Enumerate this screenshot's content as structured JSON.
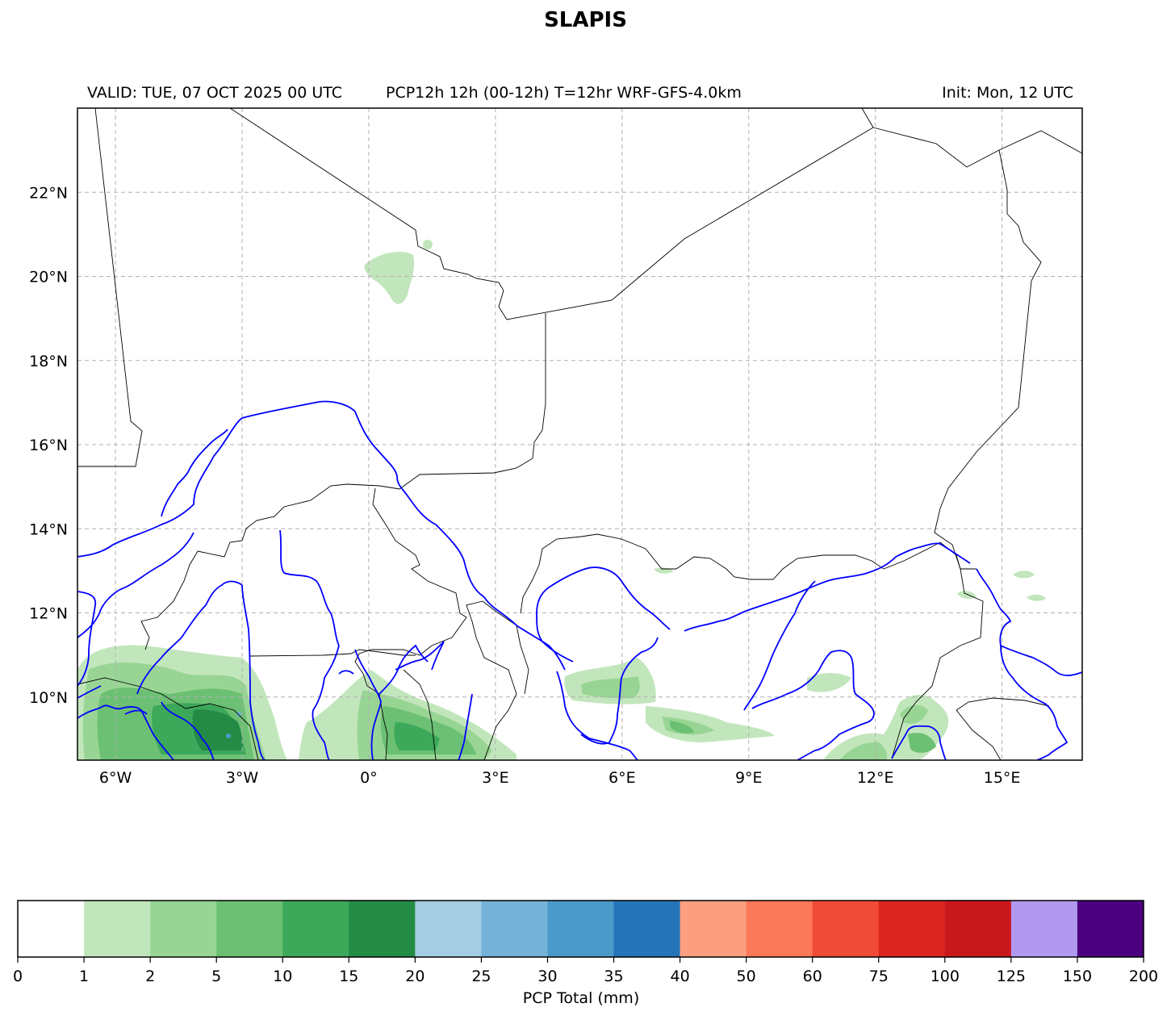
{
  "header": {
    "title": "SLAPIS",
    "valid": "VALID: TUE, 07 OCT 2025 00 UTC",
    "product": "PCP12h 12h (00-12h) T=12hr WRF-GFS-4.0km",
    "init": "Init: Mon, 12 UTC"
  },
  "map": {
    "lon_range": [
      -6.9,
      16.9
    ],
    "lat_range": [
      8.5,
      24.0
    ],
    "lon_ticks": [
      {
        "lon": -6,
        "label": "6°W"
      },
      {
        "lon": -3,
        "label": "3°W"
      },
      {
        "lon": 0,
        "label": "0°"
      },
      {
        "lon": 3,
        "label": "3°E"
      },
      {
        "lon": 6,
        "label": "6°E"
      },
      {
        "lon": 9,
        "label": "9°E"
      },
      {
        "lon": 12,
        "label": "12°E"
      },
      {
        "lon": 15,
        "label": "15°E"
      }
    ],
    "lat_ticks": [
      {
        "lat": 10,
        "label": "10°N"
      },
      {
        "lat": 12,
        "label": "12°N"
      },
      {
        "lat": 14,
        "label": "14°N"
      },
      {
        "lat": 16,
        "label": "16°N"
      },
      {
        "lat": 18,
        "label": "18°N"
      },
      {
        "lat": 20,
        "label": "20°N"
      },
      {
        "lat": 22,
        "label": "22°N"
      }
    ],
    "gridlines": true,
    "border_color": "#000000",
    "river_color": "#0000ff"
  },
  "colorbar": {
    "label": "PCP Total (mm)",
    "ticks": [
      "0",
      "1",
      "2",
      "5",
      "10",
      "15",
      "20",
      "25",
      "30",
      "35",
      "40",
      "50",
      "60",
      "75",
      "100",
      "125",
      "150",
      "200"
    ],
    "colors": [
      "#ffffff",
      "#c2e6bc",
      "#98d594",
      "#6cc073",
      "#3ca85a",
      "#238b45",
      "#a5cde3",
      "#74b2d7",
      "#4b99c9",
      "#2474b7",
      "#fc9f81",
      "#fb7858",
      "#f04b37",
      "#d9241f",
      "#c9181d",
      "#b199f0",
      "#4b007f"
    ]
  }
}
